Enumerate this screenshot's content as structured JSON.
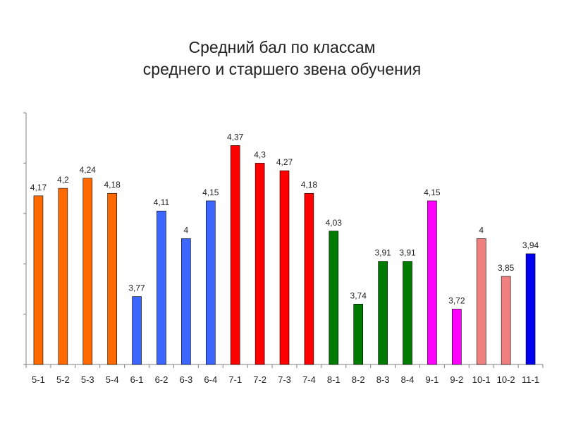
{
  "chart_data": {
    "type": "bar",
    "title_line1": "Средний бал по классам",
    "title_line2": "среднего и старшего звена обучения",
    "xlabel": "",
    "ylabel": "",
    "ylim": [
      3.5,
      4.5
    ],
    "ytick_step": 0.1,
    "ytick_labels_visible": false,
    "grid": false,
    "categories": [
      "5-1",
      "5-2",
      "5-3",
      "5-4",
      "6-1",
      "6-2",
      "6-3",
      "6-4",
      "7-1",
      "7-2",
      "7-3",
      "7-4",
      "8-1",
      "8-2",
      "8-3",
      "8-4",
      "9-1",
      "9-2",
      "10-1",
      "10-2",
      "11-1"
    ],
    "values": [
      4.17,
      4.2,
      4.24,
      4.18,
      3.77,
      4.11,
      4.0,
      4.15,
      4.37,
      4.3,
      4.27,
      4.18,
      4.03,
      3.74,
      3.91,
      3.91,
      4.15,
      3.72,
      4.0,
      3.85,
      3.94
    ],
    "value_labels": [
      "4,17",
      "4,2",
      "4,24",
      "4,18",
      "3,77",
      "4,11",
      "4",
      "4,15",
      "4,37",
      "4,3",
      "4,27",
      "4,18",
      "4,03",
      "3,74",
      "3,91",
      "3,91",
      "4,15",
      "3,72",
      "4",
      "3,85",
      "3,94"
    ],
    "colors": [
      "#FF6A00",
      "#FF6A00",
      "#FF6A00",
      "#FF6A00",
      "#3D66FF",
      "#3D66FF",
      "#3D66FF",
      "#3D66FF",
      "#FF0000",
      "#FF0000",
      "#FF0000",
      "#FF0000",
      "#007A00",
      "#007A00",
      "#007A00",
      "#007A00",
      "#FF00FF",
      "#FF00FF",
      "#F08080",
      "#F08080",
      "#0000EE"
    ]
  }
}
